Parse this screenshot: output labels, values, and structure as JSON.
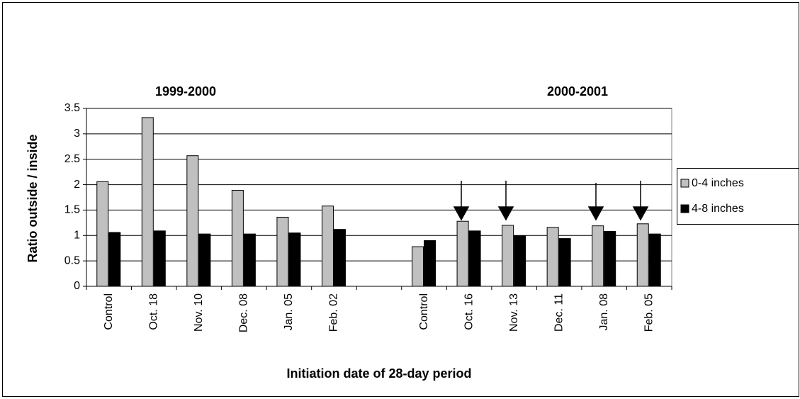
{
  "chart_data": {
    "type": "bar",
    "y_label": "Ratio outside / inside",
    "x_label": "Initiation date of 28-day period",
    "group_labels": [
      "1999-2000",
      "2000-2001"
    ],
    "categories": [
      "Control",
      "Oct. 18",
      "Nov. 10",
      "Dec. 08",
      "Jan. 05",
      "Feb. 02",
      null,
      "Control",
      "Oct. 16",
      "Nov. 13",
      "Dec. 11",
      "Jan. 08",
      "Feb. 05"
    ],
    "series": [
      {
        "name": "0-4 inches",
        "color": "#c0c0c0",
        "values": [
          2.06,
          3.32,
          2.57,
          1.89,
          1.36,
          1.58,
          null,
          0.78,
          1.28,
          1.2,
          1.16,
          1.19,
          1.23
        ]
      },
      {
        "name": "4-8 inches",
        "color": "#000000",
        "values": [
          1.06,
          1.09,
          1.03,
          1.03,
          1.05,
          1.12,
          null,
          0.9,
          1.09,
          0.99,
          0.94,
          1.08,
          1.03
        ]
      }
    ],
    "ylim": [
      0,
      3.5
    ],
    "yticks": [
      0,
      0.5,
      1,
      1.5,
      2,
      2.5,
      3,
      3.5
    ],
    "grid": true,
    "legend": "right"
  }
}
